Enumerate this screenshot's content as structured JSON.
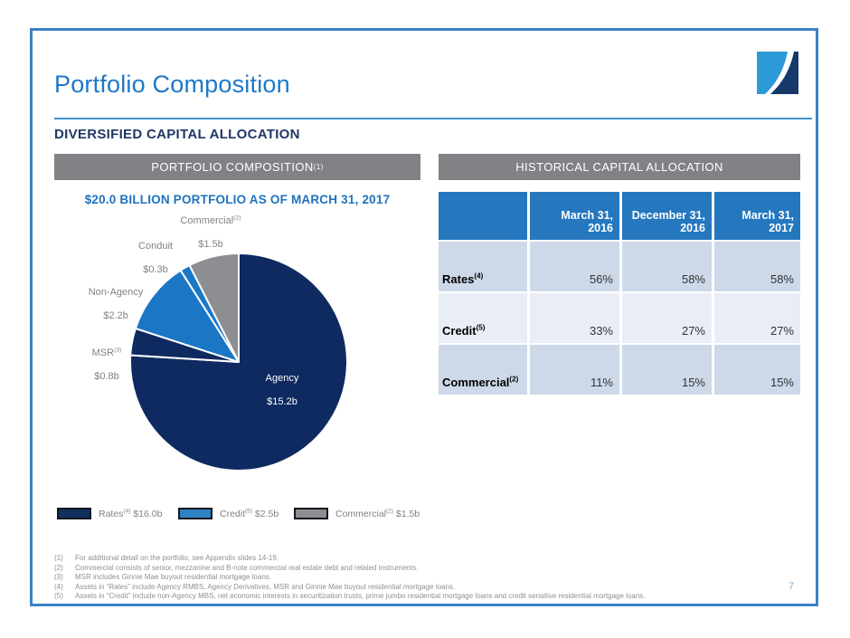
{
  "slide": {
    "title": "Portfolio Composition",
    "subtitle": "DIVERSIFIED CAPITAL ALLOCATION",
    "page_number": "7"
  },
  "left_panel": {
    "header": {
      "label": "PORTFOLIO COMPOSITION",
      "sup": "(1)"
    },
    "legend": [
      {
        "name": "Rates",
        "sup": "(4)",
        "value": "$16.0b",
        "color": "#132F5E"
      },
      {
        "name": "Credit",
        "sup": "(5)",
        "value": "$2.5b",
        "color": "#2E82C4"
      },
      {
        "name": "Commercial",
        "sup": "(2)",
        "value": "$1.5b",
        "color": "#8C8E91"
      }
    ]
  },
  "right_panel": {
    "header": {
      "label": "HISTORICAL CAPITAL ALLOCATION",
      "sup": ""
    }
  },
  "chart_data": [
    {
      "type": "pie",
      "title": "$20.0 BILLION PORTFOLIO AS OF MARCH 31, 2017",
      "start_angle_deg": 0,
      "direction": "clockwise",
      "legend_position": "bottom",
      "slices": [
        {
          "name": "Agency",
          "sup": "",
          "value": 15.2,
          "value_label": "$15.2b",
          "color": "#0E2A60",
          "label_inside": true
        },
        {
          "name": "MSR",
          "sup": "(3)",
          "value": 0.8,
          "value_label": "$0.8b",
          "color": "#0E2A60",
          "label_inside": false
        },
        {
          "name": "Non-Agency",
          "sup": "",
          "value": 2.2,
          "value_label": "$2.2b",
          "color": "#1B77C5",
          "label_inside": false
        },
        {
          "name": "Conduit",
          "sup": "",
          "value": 0.3,
          "value_label": "$0.3b",
          "color": "#1B77C5",
          "label_inside": false
        },
        {
          "name": "Commercial",
          "sup": "(2)",
          "value": 1.5,
          "value_label": "$1.5b",
          "color": "#8C8E91",
          "label_inside": false
        }
      ]
    },
    {
      "type": "table",
      "title": "HISTORICAL CAPITAL ALLOCATION",
      "columns": [
        {
          "line1": "March 31,",
          "line2": "2016"
        },
        {
          "line1": "December 31,",
          "line2": "2016"
        },
        {
          "line1": "March 31,",
          "line2": "2017"
        }
      ],
      "rows": [
        {
          "label": "Rates",
          "sup": "(4)",
          "values": [
            "56%",
            "58%",
            "58%"
          ]
        },
        {
          "label": "Credit",
          "sup": "(5)",
          "values": [
            "33%",
            "27%",
            "27%"
          ]
        },
        {
          "label": "Commercial",
          "sup": "(2)",
          "values": [
            "11%",
            "15%",
            "15%"
          ]
        }
      ]
    }
  ],
  "footnotes": [
    {
      "num": "(1)",
      "text": "For additional detail on the portfolio, see Appendix slides 14-19."
    },
    {
      "num": "(2)",
      "text": "Commercial consists of senior, mezzanine and B-note commercial real estate debt and related instruments."
    },
    {
      "num": "(3)",
      "text": "MSR includes Ginnie Mae buyout residential mortgage loans."
    },
    {
      "num": "(4)",
      "text": "Assets in “Rates” include Agency RMBS, Agency Derivatives, MSR and Ginnie Mae buyout residential mortgage loans."
    },
    {
      "num": "(5)",
      "text": "Assets in “Credit” include non-Agency MBS, net economic interests in securitization trusts, prime jumbo residential mortgage loans and credit sensitive residential mortgage loans."
    }
  ],
  "colors": {
    "accent_blue": "#1E78C8",
    "navy": "#1F3864",
    "bar_gray": "#818285",
    "table_header_blue": "#2577BE",
    "row_shade_dark": "#CDD9E9",
    "row_shade_light": "#E9EDF5",
    "pie_navy": "#0E2A60",
    "pie_blue": "#1B77C5",
    "pie_gray": "#8C8E91",
    "label_gray": "#808285",
    "footnote_gray": "#8E9093",
    "border_blue": "#3B82C4",
    "page_number_blue": "#7FB0D9"
  }
}
